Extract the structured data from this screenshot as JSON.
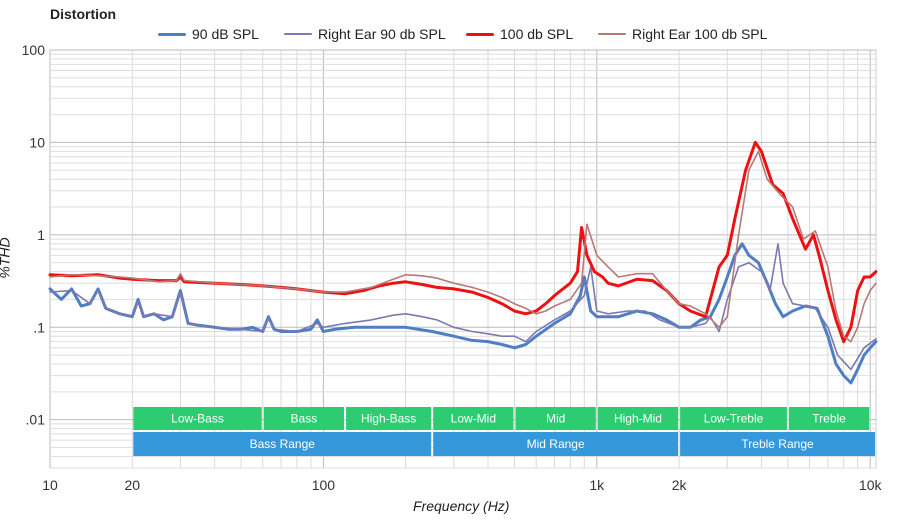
{
  "chart_data": {
    "type": "line",
    "title": "Distortion",
    "xlabel": "Frequency (Hz)",
    "ylabel": "%THD",
    "xscale": "log",
    "yscale": "log",
    "xlim": [
      10,
      10500
    ],
    "ylim": [
      0.003,
      100
    ],
    "x_ticks": [
      {
        "value": 10,
        "label": "10"
      },
      {
        "value": 20,
        "label": "20"
      },
      {
        "value": 100,
        "label": "100"
      },
      {
        "value": 1000,
        "label": "1k"
      },
      {
        "value": 2000,
        "label": "2k"
      },
      {
        "value": 10000,
        "label": "10k"
      }
    ],
    "y_ticks": [
      {
        "value": 100,
        "label": "100"
      },
      {
        "value": 10,
        "label": "10"
      },
      {
        "value": 1,
        "label": "1"
      },
      {
        "value": 0.1,
        "label": ".1"
      },
      {
        "value": 0.01,
        "label": ".01"
      }
    ],
    "grid": true,
    "legend_position": "top",
    "series": [
      {
        "name": "90 dB SPL",
        "color": "#4e7fc4",
        "points": [
          [
            10,
            0.26
          ],
          [
            11,
            0.2
          ],
          [
            12,
            0.26
          ],
          [
            13,
            0.17
          ],
          [
            14,
            0.18
          ],
          [
            15,
            0.26
          ],
          [
            16,
            0.16
          ],
          [
            18,
            0.14
          ],
          [
            20,
            0.13
          ],
          [
            21,
            0.2
          ],
          [
            22,
            0.13
          ],
          [
            24,
            0.14
          ],
          [
            26,
            0.12
          ],
          [
            28,
            0.13
          ],
          [
            30,
            0.25
          ],
          [
            32,
            0.11
          ],
          [
            35,
            0.105
          ],
          [
            40,
            0.1
          ],
          [
            45,
            0.095
          ],
          [
            50,
            0.095
          ],
          [
            55,
            0.1
          ],
          [
            60,
            0.09
          ],
          [
            63,
            0.13
          ],
          [
            66,
            0.095
          ],
          [
            70,
            0.09
          ],
          [
            80,
            0.09
          ],
          [
            90,
            0.095
          ],
          [
            95,
            0.12
          ],
          [
            100,
            0.09
          ],
          [
            110,
            0.095
          ],
          [
            130,
            0.1
          ],
          [
            150,
            0.1
          ],
          [
            170,
            0.1
          ],
          [
            200,
            0.1
          ],
          [
            250,
            0.09
          ],
          [
            300,
            0.08
          ],
          [
            350,
            0.072
          ],
          [
            400,
            0.07
          ],
          [
            450,
            0.065
          ],
          [
            500,
            0.06
          ],
          [
            550,
            0.065
          ],
          [
            600,
            0.08
          ],
          [
            700,
            0.11
          ],
          [
            800,
            0.14
          ],
          [
            870,
            0.22
          ],
          [
            900,
            0.35
          ],
          [
            950,
            0.15
          ],
          [
            1000,
            0.13
          ],
          [
            1200,
            0.13
          ],
          [
            1400,
            0.15
          ],
          [
            1600,
            0.14
          ],
          [
            1800,
            0.12
          ],
          [
            2000,
            0.1
          ],
          [
            2200,
            0.1
          ],
          [
            2400,
            0.12
          ],
          [
            2600,
            0.13
          ],
          [
            2800,
            0.2
          ],
          [
            3000,
            0.35
          ],
          [
            3200,
            0.6
          ],
          [
            3400,
            0.8
          ],
          [
            3600,
            0.6
          ],
          [
            3900,
            0.5
          ],
          [
            4200,
            0.3
          ],
          [
            4500,
            0.18
          ],
          [
            4800,
            0.13
          ],
          [
            5200,
            0.15
          ],
          [
            5800,
            0.17
          ],
          [
            6400,
            0.16
          ],
          [
            7000,
            0.08
          ],
          [
            7500,
            0.04
          ],
          [
            8000,
            0.03
          ],
          [
            8500,
            0.025
          ],
          [
            9000,
            0.035
          ],
          [
            9500,
            0.05
          ],
          [
            10000,
            0.06
          ],
          [
            10500,
            0.07
          ]
        ]
      },
      {
        "name": "Right Ear 90 db SPL",
        "color": "#7d78b0",
        "points": [
          [
            10,
            0.24
          ],
          [
            12,
            0.25
          ],
          [
            14,
            0.18
          ],
          [
            15,
            0.25
          ],
          [
            16,
            0.16
          ],
          [
            18,
            0.14
          ],
          [
            20,
            0.13
          ],
          [
            21,
            0.19
          ],
          [
            22,
            0.13
          ],
          [
            24,
            0.14
          ],
          [
            28,
            0.13
          ],
          [
            30,
            0.24
          ],
          [
            32,
            0.11
          ],
          [
            40,
            0.1
          ],
          [
            50,
            0.095
          ],
          [
            60,
            0.09
          ],
          [
            63,
            0.125
          ],
          [
            66,
            0.095
          ],
          [
            80,
            0.09
          ],
          [
            95,
            0.11
          ],
          [
            100,
            0.1
          ],
          [
            120,
            0.11
          ],
          [
            150,
            0.12
          ],
          [
            180,
            0.135
          ],
          [
            200,
            0.14
          ],
          [
            230,
            0.13
          ],
          [
            260,
            0.12
          ],
          [
            300,
            0.1
          ],
          [
            350,
            0.09
          ],
          [
            400,
            0.085
          ],
          [
            450,
            0.08
          ],
          [
            500,
            0.08
          ],
          [
            550,
            0.07
          ],
          [
            600,
            0.09
          ],
          [
            700,
            0.12
          ],
          [
            800,
            0.15
          ],
          [
            900,
            0.22
          ],
          [
            950,
            0.45
          ],
          [
            1000,
            0.15
          ],
          [
            1100,
            0.14
          ],
          [
            1300,
            0.15
          ],
          [
            1500,
            0.15
          ],
          [
            1700,
            0.12
          ],
          [
            2000,
            0.1
          ],
          [
            2200,
            0.1
          ],
          [
            2500,
            0.11
          ],
          [
            2600,
            0.13
          ],
          [
            2800,
            0.09
          ],
          [
            3000,
            0.2
          ],
          [
            3300,
            0.45
          ],
          [
            3600,
            0.5
          ],
          [
            4000,
            0.4
          ],
          [
            4300,
            0.25
          ],
          [
            4600,
            0.8
          ],
          [
            4800,
            0.3
          ],
          [
            5200,
            0.18
          ],
          [
            5800,
            0.17
          ],
          [
            6300,
            0.16
          ],
          [
            7000,
            0.1
          ],
          [
            7600,
            0.05
          ],
          [
            8500,
            0.035
          ],
          [
            9500,
            0.06
          ],
          [
            10500,
            0.075
          ]
        ]
      },
      {
        "name": "100 db SPL",
        "color": "#ee1111",
        "points": [
          [
            10,
            0.37
          ],
          [
            12,
            0.36
          ],
          [
            15,
            0.37
          ],
          [
            18,
            0.34
          ],
          [
            20,
            0.33
          ],
          [
            25,
            0.32
          ],
          [
            29,
            0.32
          ],
          [
            30,
            0.35
          ],
          [
            31,
            0.31
          ],
          [
            40,
            0.3
          ],
          [
            50,
            0.29
          ],
          [
            60,
            0.28
          ],
          [
            70,
            0.27
          ],
          [
            80,
            0.26
          ],
          [
            100,
            0.24
          ],
          [
            120,
            0.23
          ],
          [
            140,
            0.25
          ],
          [
            160,
            0.28
          ],
          [
            180,
            0.3
          ],
          [
            200,
            0.31
          ],
          [
            230,
            0.29
          ],
          [
            260,
            0.27
          ],
          [
            300,
            0.26
          ],
          [
            350,
            0.24
          ],
          [
            400,
            0.21
          ],
          [
            450,
            0.18
          ],
          [
            500,
            0.15
          ],
          [
            550,
            0.14
          ],
          [
            600,
            0.15
          ],
          [
            650,
            0.18
          ],
          [
            700,
            0.22
          ],
          [
            800,
            0.3
          ],
          [
            850,
            0.4
          ],
          [
            880,
            1.2
          ],
          [
            920,
            0.6
          ],
          [
            980,
            0.4
          ],
          [
            1050,
            0.35
          ],
          [
            1100,
            0.3
          ],
          [
            1200,
            0.28
          ],
          [
            1400,
            0.33
          ],
          [
            1600,
            0.32
          ],
          [
            1800,
            0.25
          ],
          [
            2000,
            0.18
          ],
          [
            2200,
            0.15
          ],
          [
            2500,
            0.13
          ],
          [
            2800,
            0.45
          ],
          [
            3000,
            0.6
          ],
          [
            3200,
            1.5
          ],
          [
            3500,
            5
          ],
          [
            3800,
            10
          ],
          [
            4000,
            8
          ],
          [
            4400,
            3.5
          ],
          [
            4800,
            2.8
          ],
          [
            5200,
            1.5
          ],
          [
            5800,
            0.7
          ],
          [
            6200,
            1.0
          ],
          [
            6500,
            0.6
          ],
          [
            7000,
            0.25
          ],
          [
            7500,
            0.12
          ],
          [
            8000,
            0.07
          ],
          [
            8500,
            0.1
          ],
          [
            9000,
            0.25
          ],
          [
            9500,
            0.35
          ],
          [
            10000,
            0.35
          ],
          [
            10500,
            0.4
          ]
        ]
      },
      {
        "name": "Right Ear 100 db SPL",
        "color": "#b87878",
        "points": [
          [
            10,
            0.35
          ],
          [
            12,
            0.37
          ],
          [
            15,
            0.36
          ],
          [
            18,
            0.35
          ],
          [
            20,
            0.34
          ],
          [
            25,
            0.31
          ],
          [
            29,
            0.32
          ],
          [
            30,
            0.38
          ],
          [
            31,
            0.32
          ],
          [
            40,
            0.3
          ],
          [
            50,
            0.29
          ],
          [
            60,
            0.28
          ],
          [
            80,
            0.26
          ],
          [
            100,
            0.24
          ],
          [
            120,
            0.24
          ],
          [
            150,
            0.27
          ],
          [
            180,
            0.33
          ],
          [
            200,
            0.37
          ],
          [
            230,
            0.36
          ],
          [
            260,
            0.34
          ],
          [
            300,
            0.3
          ],
          [
            350,
            0.27
          ],
          [
            400,
            0.24
          ],
          [
            450,
            0.21
          ],
          [
            500,
            0.18
          ],
          [
            550,
            0.16
          ],
          [
            600,
            0.14
          ],
          [
            650,
            0.15
          ],
          [
            700,
            0.17
          ],
          [
            800,
            0.2
          ],
          [
            880,
            0.3
          ],
          [
            920,
            1.3
          ],
          [
            1000,
            0.6
          ],
          [
            1100,
            0.45
          ],
          [
            1200,
            0.35
          ],
          [
            1400,
            0.38
          ],
          [
            1600,
            0.38
          ],
          [
            1800,
            0.25
          ],
          [
            2000,
            0.18
          ],
          [
            2200,
            0.17
          ],
          [
            2500,
            0.14
          ],
          [
            2800,
            0.1
          ],
          [
            3000,
            0.13
          ],
          [
            3300,
            1.0
          ],
          [
            3600,
            5
          ],
          [
            3900,
            8
          ],
          [
            4200,
            4
          ],
          [
            4700,
            2.7
          ],
          [
            5200,
            2.0
          ],
          [
            5700,
            0.9
          ],
          [
            6300,
            1.1
          ],
          [
            7000,
            0.45
          ],
          [
            7500,
            0.15
          ],
          [
            8000,
            0.08
          ],
          [
            8500,
            0.07
          ],
          [
            9000,
            0.1
          ],
          [
            9500,
            0.18
          ],
          [
            10000,
            0.25
          ],
          [
            10500,
            0.3
          ]
        ]
      }
    ],
    "bands": [
      {
        "label": "Low-Bass",
        "row": 1,
        "color": "#2ecc71",
        "from": 20,
        "to": 60
      },
      {
        "label": "Bass",
        "row": 1,
        "color": "#2ecc71",
        "from": 60,
        "to": 120
      },
      {
        "label": "High-Bass",
        "row": 1,
        "color": "#2ecc71",
        "from": 120,
        "to": 250
      },
      {
        "label": "Low-Mid",
        "row": 1,
        "color": "#2ecc71",
        "from": 250,
        "to": 500
      },
      {
        "label": "Mid",
        "row": 1,
        "color": "#2ecc71",
        "from": 500,
        "to": 1000
      },
      {
        "label": "High-Mid",
        "row": 1,
        "color": "#2ecc71",
        "from": 1000,
        "to": 2000
      },
      {
        "label": "Low-Treble",
        "row": 1,
        "color": "#2ecc71",
        "from": 2000,
        "to": 5000
      },
      {
        "label": "Treble",
        "row": 1,
        "color": "#2ecc71",
        "from": 5000,
        "to": 10000
      },
      {
        "label": "Bass Range",
        "row": 2,
        "color": "#3498db",
        "from": 20,
        "to": 250
      },
      {
        "label": "Mid Range",
        "row": 2,
        "color": "#3498db",
        "from": 250,
        "to": 2000
      },
      {
        "label": "Treble Range",
        "row": 2,
        "color": "#3498db",
        "from": 2000,
        "to": 10500
      }
    ]
  }
}
